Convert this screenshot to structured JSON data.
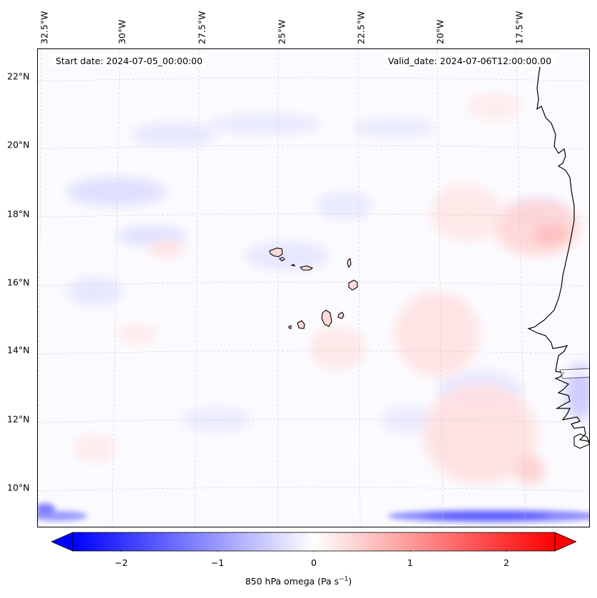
{
  "map": {
    "start_date": "Start date: 2024-07-05_00:00:00",
    "valid_date": "Valid_date: 2024-07-06T12:00:00.00",
    "longitude_labels": [
      "32.5°W",
      "30°W",
      "27.5°W",
      "25°W",
      "22.5°W",
      "20°W",
      "17.5°W"
    ],
    "latitude_labels": [
      "22°N",
      "20°N",
      "18°N",
      "16°N",
      "14°N",
      "12°N",
      "10°N"
    ],
    "field_colors": {
      "negative": "#0000ff",
      "zero": "#ffffff",
      "positive": "#ff0000"
    },
    "features": [
      "Cape Verde islands",
      "West African coastline"
    ]
  },
  "colorbar": {
    "label_prefix": "850 hPa omega (Pa s",
    "label_exponent": "−1",
    "label_suffix": ")",
    "ticks": [
      "−2",
      "−1",
      "0",
      "1",
      "2"
    ],
    "tick_values": [
      -2,
      -1,
      0,
      1,
      2
    ],
    "range": [
      -2.5,
      2.5
    ],
    "extend": "both"
  }
}
